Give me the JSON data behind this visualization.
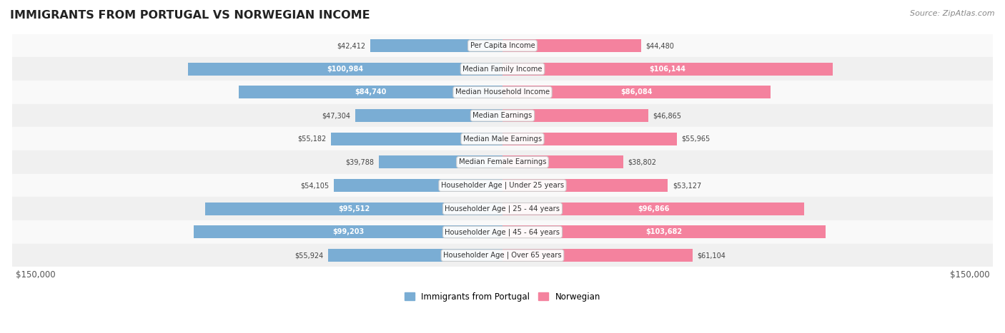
{
  "title": "IMMIGRANTS FROM PORTUGAL VS NORWEGIAN INCOME",
  "source": "Source: ZipAtlas.com",
  "categories": [
    "Per Capita Income",
    "Median Family Income",
    "Median Household Income",
    "Median Earnings",
    "Median Male Earnings",
    "Median Female Earnings",
    "Householder Age | Under 25 years",
    "Householder Age | 25 - 44 years",
    "Householder Age | 45 - 64 years",
    "Householder Age | Over 65 years"
  ],
  "portugal_values": [
    42412,
    100984,
    84740,
    47304,
    55182,
    39788,
    54105,
    95512,
    99203,
    55924
  ],
  "norwegian_values": [
    44480,
    106144,
    86084,
    46865,
    55965,
    38802,
    53127,
    96866,
    103682,
    61104
  ],
  "portugal_labels": [
    "$42,412",
    "$100,984",
    "$84,740",
    "$47,304",
    "$55,182",
    "$39,788",
    "$54,105",
    "$95,512",
    "$99,203",
    "$55,924"
  ],
  "norwegian_labels": [
    "$44,480",
    "$106,144",
    "$86,084",
    "$46,865",
    "$55,965",
    "$38,802",
    "$53,127",
    "$96,866",
    "$103,682",
    "$61,104"
  ],
  "portugal_color": "#7aadd4",
  "norwegian_color": "#f4829e",
  "portugal_color_dark": "#5b9bc8",
  "norwegian_color_dark": "#f06090",
  "bg_color": "#f5f5f5",
  "row_bg_light": "#f9f9f9",
  "row_bg_dark": "#f0f0f0",
  "max_value": 150000,
  "bar_height": 0.55,
  "label_threshold": 80000
}
